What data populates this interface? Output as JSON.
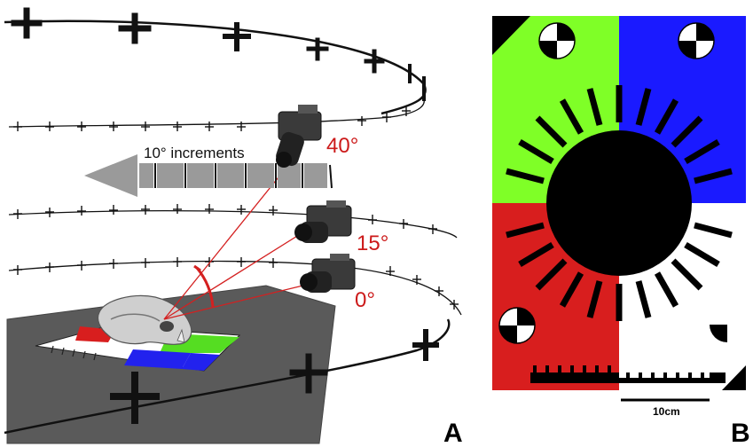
{
  "panel_a": {
    "increment_label": "10° increments",
    "angles": [
      "40°",
      "15°",
      "0°"
    ],
    "panel_letter": "A",
    "colors": {
      "angle_text": "#cc1a1a",
      "rays": "#d42020",
      "ground": "#555555"
    }
  },
  "panel_b": {
    "scale_label": "10cm",
    "panel_letter": "B",
    "colors": {
      "green": "#7fff27",
      "blue": "#1a1aff",
      "red": "#d81e1e",
      "white": "#ffffff"
    }
  },
  "icons": [
    "camera-icon",
    "skull-icon",
    "calibration-target-icon",
    "arrow-icon"
  ]
}
